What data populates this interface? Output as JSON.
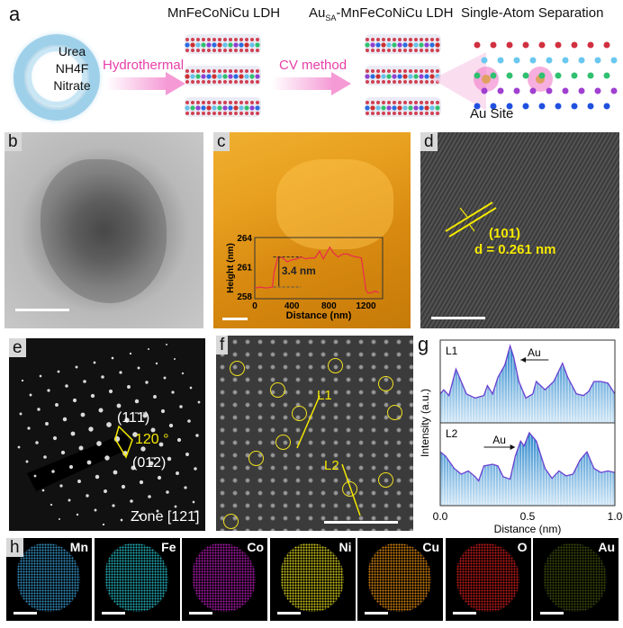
{
  "panel_a": {
    "label": "a",
    "precursors": [
      "Urea",
      "NH4F",
      "Nitrate"
    ],
    "step1_label": "Hydrothermal",
    "step2_label": "CV method",
    "title_ldh": "MnFeCoNiCu LDH",
    "title_au_ldh_prefix": "Au",
    "title_au_ldh_sub": "SA",
    "title_au_ldh_suffix": "-MnFeCoNiCu LDH",
    "title_separation": "Single-Atom Separation",
    "au_site_label": "Au Site",
    "colors": {
      "arrow": "#f59ad5",
      "arrow_text": "#e83fa8"
    }
  },
  "panel_b": {
    "label": "b"
  },
  "panel_c": {
    "label": "c",
    "step_annotation": "3.4 nm"
  },
  "panel_d": {
    "label": "d",
    "plane": "(101)",
    "d_spacing": "d = 0.261 nm",
    "annotation_color": "#f5e800"
  },
  "panel_e": {
    "label": "e",
    "spot1": "(11̄1̄)",
    "spot2": "(01̄2)",
    "angle": "120 °",
    "zone": "Zone [121̄]"
  },
  "panel_f": {
    "label": "f",
    "line1": "L1",
    "line2": "L2"
  },
  "panel_g": {
    "label": "g",
    "au_label": "Au"
  },
  "panel_h": {
    "label": "h",
    "elements": [
      {
        "name": "Mn",
        "color": "#3aa6e0"
      },
      {
        "name": "Fe",
        "color": "#28c8d2"
      },
      {
        "name": "Co",
        "color": "#c21cc4"
      },
      {
        "name": "Ni",
        "color": "#ece420"
      },
      {
        "name": "Cu",
        "color": "#f29412"
      },
      {
        "name": "O",
        "color": "#e01e1e"
      },
      {
        "name": "Au",
        "color": "#a4d020"
      }
    ]
  },
  "chart_data": [
    {
      "type": "line",
      "panel": "c-inset",
      "xlabel": "Distance (nm)",
      "ylabel": "Height (nm)",
      "xticks": [
        "0",
        "400",
        "800",
        "1200"
      ],
      "yticks": [
        "258",
        "261",
        "264"
      ],
      "xlim": [
        0,
        1380
      ],
      "ylim": [
        257.7,
        264
      ],
      "color": "#e8304a",
      "x": [
        0,
        60,
        120,
        190,
        210,
        250,
        300,
        350,
        400,
        450,
        500,
        550,
        600,
        650,
        700,
        740,
        780,
        810,
        850,
        900,
        950,
        1000,
        1050,
        1100,
        1150,
        1180,
        1200,
        1220,
        1260,
        1300,
        1340
      ],
      "y": [
        258.8,
        258.9,
        258.8,
        258.9,
        260.5,
        262.0,
        261.9,
        261.5,
        261.7,
        261.8,
        262.0,
        261.8,
        261.9,
        261.9,
        262.6,
        261.8,
        262.5,
        263.0,
        262.4,
        262.0,
        262.3,
        262.3,
        262.1,
        262.0,
        261.9,
        260.0,
        258.6,
        258.3,
        258.3,
        258.5,
        258.3
      ]
    },
    {
      "type": "area",
      "panel": "g",
      "xlabel": "Distance (nm)",
      "ylabel": "Intensity (a.u.)",
      "xticks": [
        "0.0",
        "0.5",
        "1.0"
      ],
      "xlim": [
        0,
        1
      ],
      "series": [
        {
          "name": "L1",
          "x": [
            0,
            0.02,
            0.05,
            0.09,
            0.12,
            0.15,
            0.2,
            0.25,
            0.27,
            0.3,
            0.33,
            0.37,
            0.4,
            0.42,
            0.45,
            0.49,
            0.53,
            0.55,
            0.6,
            0.65,
            0.7,
            0.73,
            0.78,
            0.82,
            0.85,
            0.88,
            0.92,
            0.96,
            1.0
          ],
          "y": [
            0.35,
            0.4,
            0.33,
            0.65,
            0.5,
            0.35,
            0.3,
            0.33,
            0.45,
            0.35,
            0.55,
            0.7,
            0.93,
            0.8,
            0.5,
            0.3,
            0.35,
            0.5,
            0.4,
            0.5,
            0.72,
            0.55,
            0.35,
            0.33,
            0.38,
            0.5,
            0.5,
            0.48,
            0.35
          ]
        },
        {
          "name": "L2",
          "x": [
            0,
            0.03,
            0.08,
            0.12,
            0.16,
            0.2,
            0.22,
            0.25,
            0.3,
            0.33,
            0.36,
            0.4,
            0.43,
            0.46,
            0.48,
            0.51,
            0.55,
            0.6,
            0.64,
            0.68,
            0.72,
            0.76,
            0.8,
            0.84,
            0.88,
            0.92,
            0.96,
            1.0
          ],
          "y": [
            0.65,
            0.6,
            0.45,
            0.38,
            0.42,
            0.35,
            0.3,
            0.48,
            0.5,
            0.48,
            0.35,
            0.32,
            0.6,
            0.78,
            0.72,
            0.88,
            0.78,
            0.45,
            0.33,
            0.42,
            0.36,
            0.38,
            0.55,
            0.65,
            0.45,
            0.4,
            0.42,
            0.4
          ]
        }
      ],
      "fill": "#3a98d8",
      "line_color": "#6a3fd0"
    }
  ]
}
